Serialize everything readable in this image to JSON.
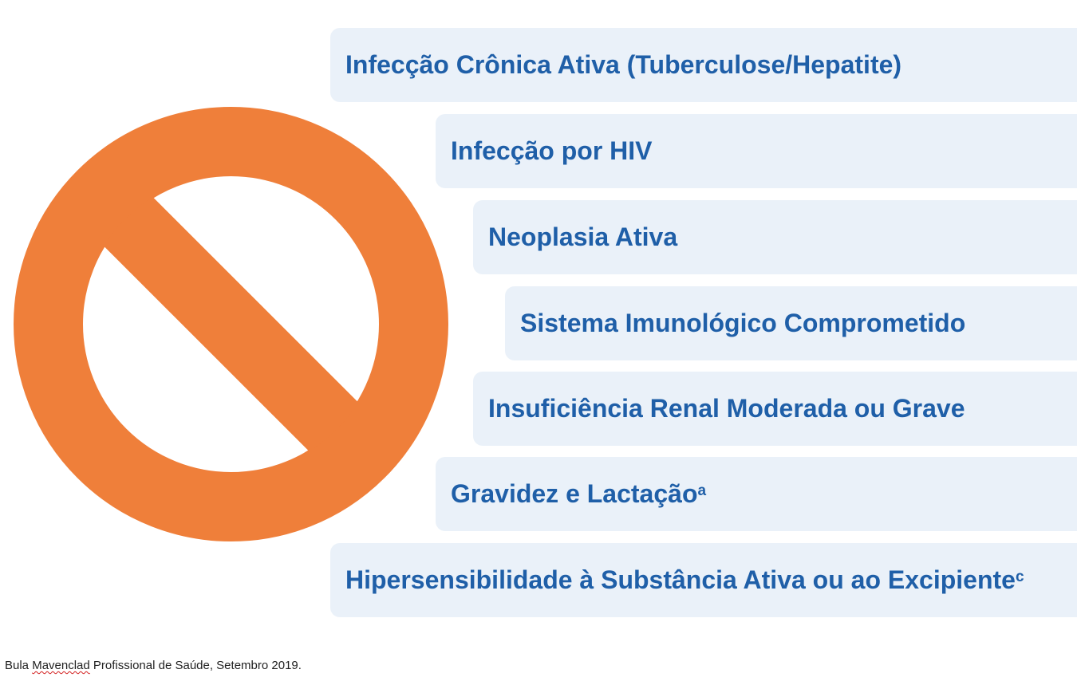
{
  "colors": {
    "sign": "#ef7f3a",
    "box_background": "#eaf1f9",
    "box_text": "#1f5fa8"
  },
  "sign_icon": "prohibition-icon",
  "items": [
    {
      "label": "Infecção Crônica Ativa (Tuberculose/Hepatite)",
      "sup": ""
    },
    {
      "label": "Infecção por HIV",
      "sup": ""
    },
    {
      "label": "Neoplasia Ativa",
      "sup": ""
    },
    {
      "label": "Sistema Imunológico Comprometido",
      "sup": ""
    },
    {
      "label": "Insuficiência Renal Moderada ou Grave",
      "sup": ""
    },
    {
      "label": "Gravidez e Lactação",
      "sup": "a"
    },
    {
      "label": "Hipersensibilidade à Substância Ativa ou ao Excipiente",
      "sup": "c"
    }
  ],
  "footnote": {
    "prefix": "Bula ",
    "brand": "Mavenclad",
    "suffix": " Profissional de Saúde, Setembro 2019."
  }
}
